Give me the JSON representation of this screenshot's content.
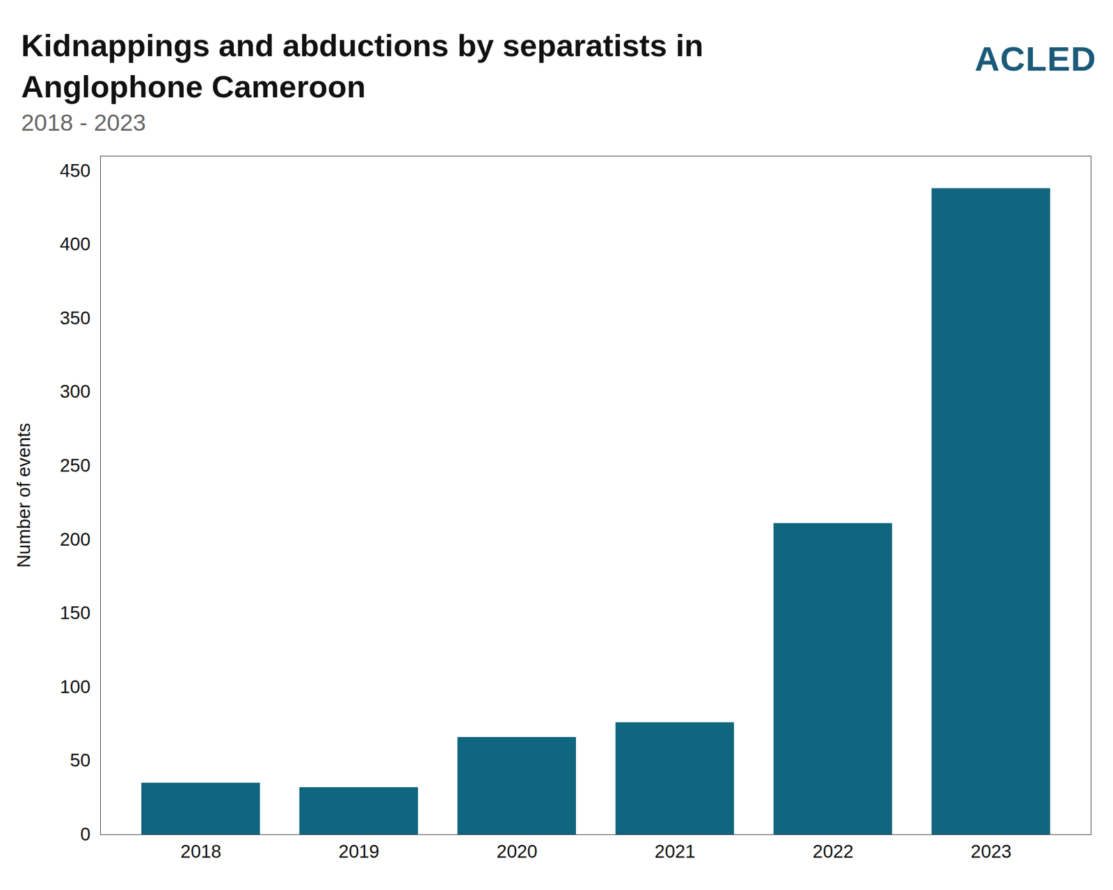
{
  "chart_data": {
    "type": "bar",
    "title": "Kidnappings and abductions by separatists in Anglophone Cameroon",
    "subtitle": "2018 - 2023",
    "logo_text": "ACLED",
    "y_label": "Number of events",
    "categories": [
      "2018",
      "2019",
      "2020",
      "2021",
      "2022",
      "2023"
    ],
    "values": [
      35,
      32,
      66,
      76,
      211,
      438
    ],
    "color": "#10667f",
    "ylim": [
      0,
      460
    ],
    "yticks": [
      0,
      50,
      100,
      150,
      200,
      250,
      300,
      350,
      400,
      450
    ],
    "grid": false
  }
}
